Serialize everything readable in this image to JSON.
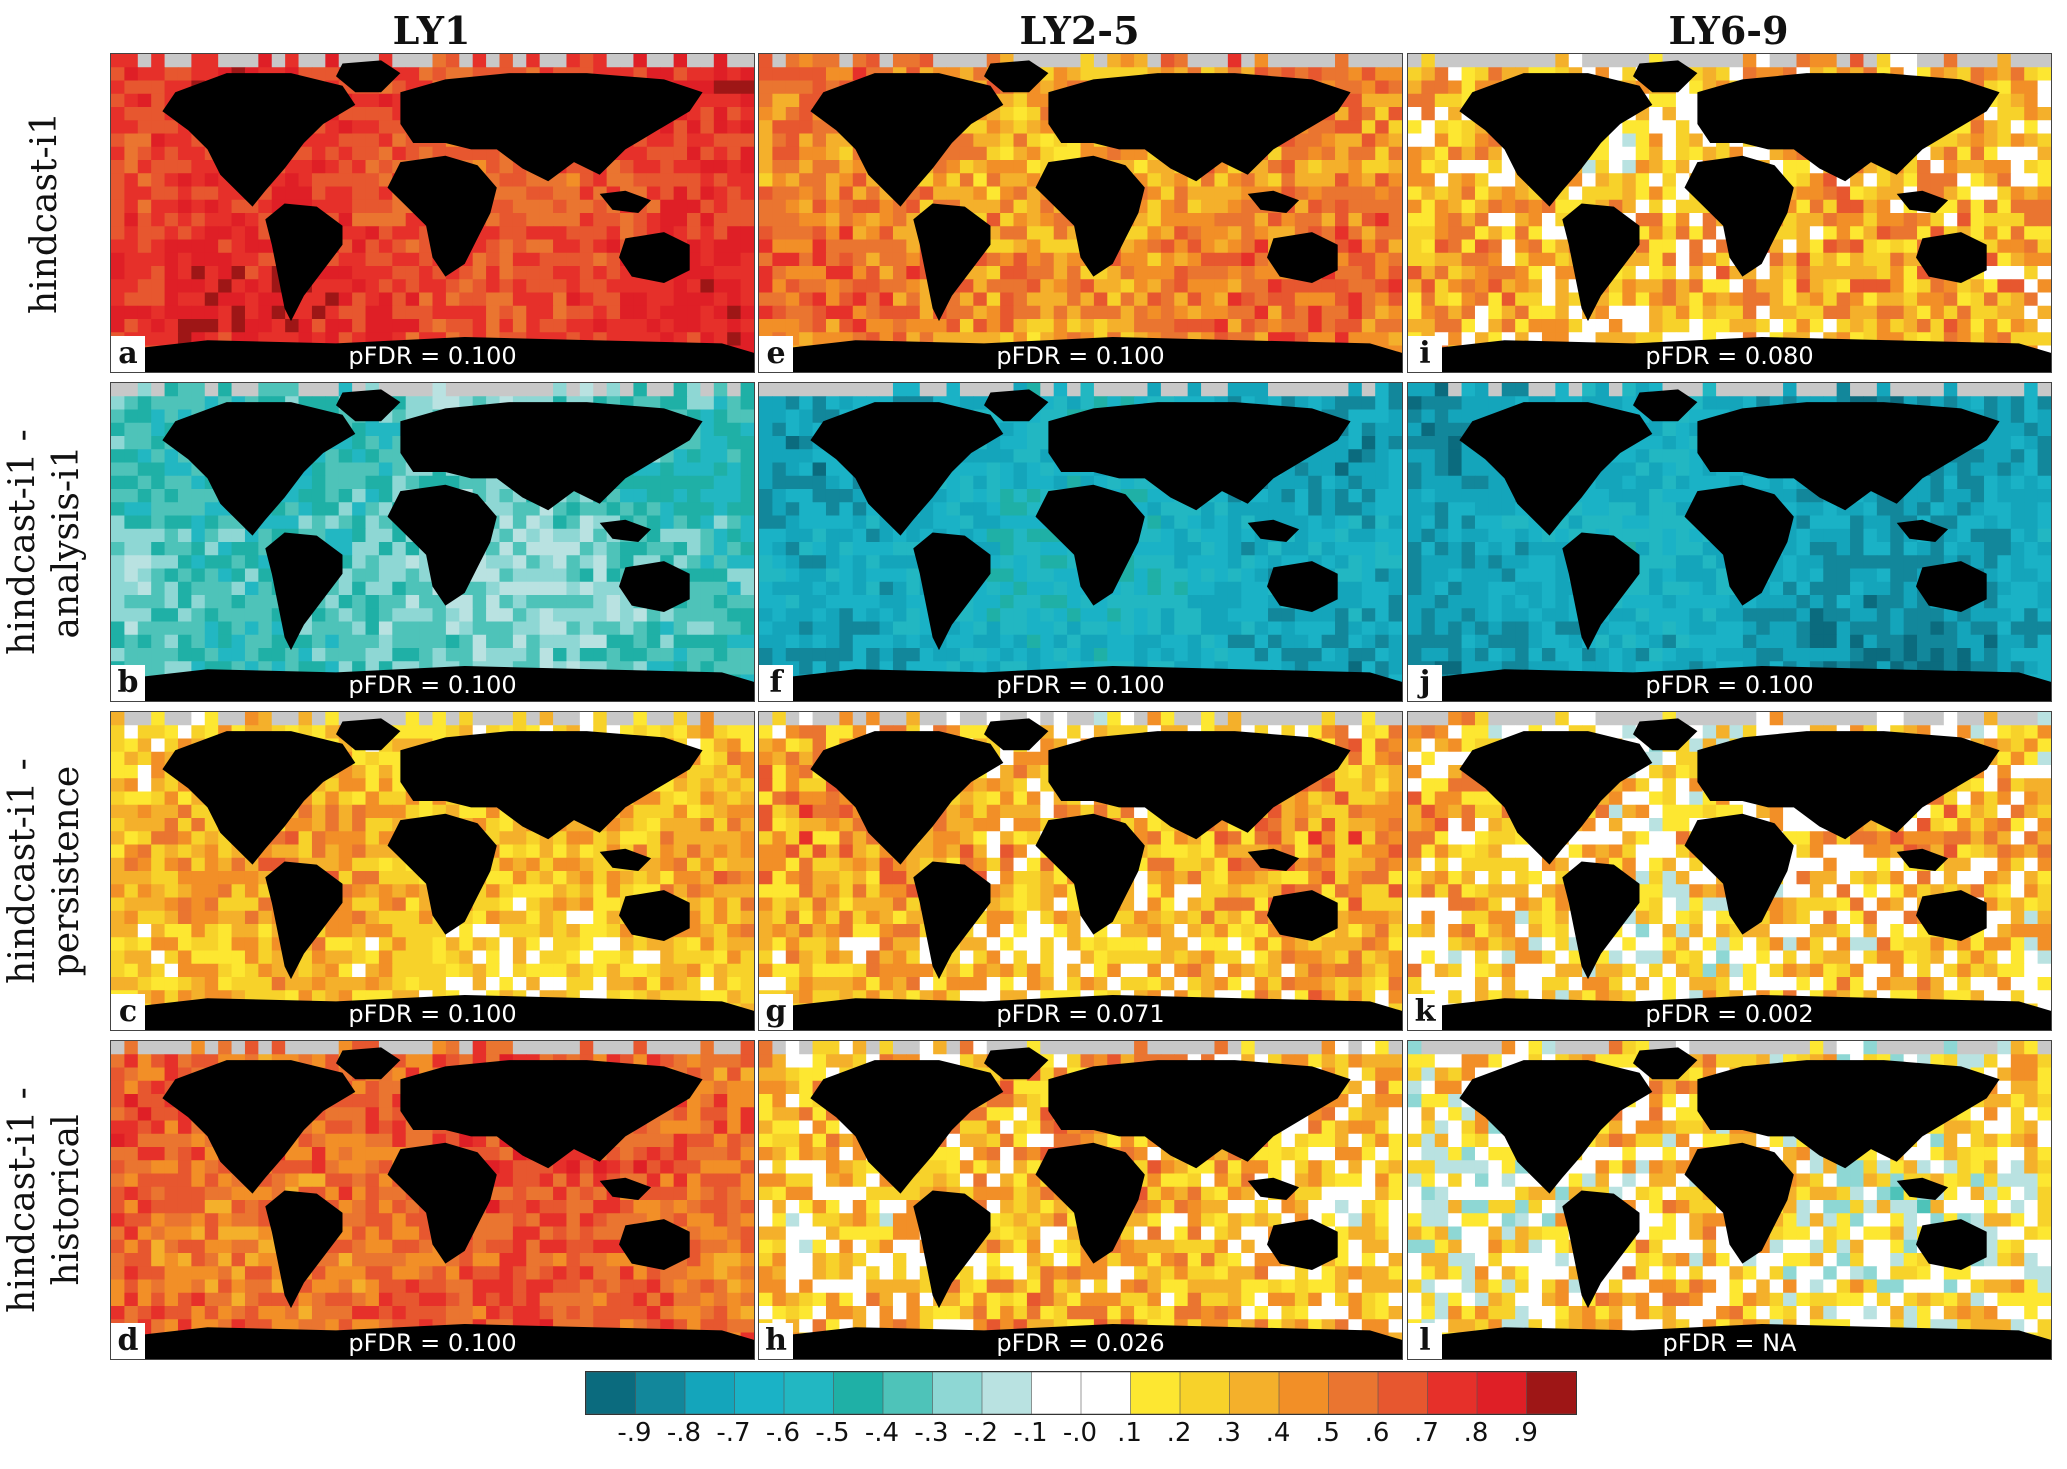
{
  "chart_data": {
    "type": "heatmap",
    "columns": [
      "LY1",
      "LY2-5",
      "LY6-9"
    ],
    "rows": [
      {
        "label_line1": "hindcast-i1",
        "label_line2": ""
      },
      {
        "label_line1": "hindcast-i1 -",
        "label_line2": "analysis-i1"
      },
      {
        "label_line1": "hindcast-i1 -",
        "label_line2": "persistence"
      },
      {
        "label_line1": "hindcast-i1 -",
        "label_line2": "historical"
      }
    ],
    "panels": [
      {
        "letter": "a",
        "row": 0,
        "col": 0,
        "pfdr": "pFDR = 0.100",
        "mean": 0.72,
        "spread": 0.12
      },
      {
        "letter": "e",
        "row": 0,
        "col": 1,
        "pfdr": "pFDR = 0.100",
        "mean": 0.48,
        "spread": 0.2
      },
      {
        "letter": "i",
        "row": 0,
        "col": 2,
        "pfdr": "pFDR = 0.080",
        "mean": 0.3,
        "spread": 0.3
      },
      {
        "letter": "b",
        "row": 1,
        "col": 0,
        "pfdr": "pFDR = 0.100",
        "mean": -0.38,
        "spread": 0.15
      },
      {
        "letter": "f",
        "row": 1,
        "col": 1,
        "pfdr": "pFDR = 0.100",
        "mean": -0.68,
        "spread": 0.14
      },
      {
        "letter": "j",
        "row": 1,
        "col": 2,
        "pfdr": "pFDR = 0.100",
        "mean": -0.75,
        "spread": 0.12
      },
      {
        "letter": "c",
        "row": 2,
        "col": 0,
        "pfdr": "pFDR = 0.100",
        "mean": 0.32,
        "spread": 0.2
      },
      {
        "letter": "g",
        "row": 2,
        "col": 1,
        "pfdr": "pFDR = 0.071",
        "mean": 0.33,
        "spread": 0.28
      },
      {
        "letter": "k",
        "row": 2,
        "col": 2,
        "pfdr": "pFDR = 0.002",
        "mean": 0.22,
        "spread": 0.33
      },
      {
        "letter": "d",
        "row": 3,
        "col": 0,
        "pfdr": "pFDR = 0.100",
        "mean": 0.62,
        "spread": 0.17
      },
      {
        "letter": "h",
        "row": 3,
        "col": 1,
        "pfdr": "pFDR = 0.026",
        "mean": 0.3,
        "spread": 0.3
      },
      {
        "letter": "l",
        "row": 3,
        "col": 2,
        "pfdr": "pFDR = NA",
        "mean": 0.15,
        "spread": 0.35
      }
    ],
    "colorbar": {
      "ticks": [
        "-.9",
        "-.8",
        "-.7",
        "-.6",
        "-.5",
        "-.4",
        "-.3",
        "-.2",
        "-.1",
        "-.0",
        ".1",
        ".2",
        ".3",
        ".4",
        ".5",
        ".6",
        ".7",
        ".8",
        ".9"
      ],
      "colors": [
        "#0b6b7e",
        "#12879b",
        "#14a5bb",
        "#1ab2c6",
        "#22b7c2",
        "#1fb0a6",
        "#4ec3b9",
        "#8ed7d4",
        "#b9e2e1",
        "#ffffff",
        "#ffffff",
        "#fde731",
        "#f7d22a",
        "#f4b02b",
        "#f28f27",
        "#ea7530",
        "#e7572f",
        "#e6302a",
        "#df1f26",
        "#9e1616"
      ]
    },
    "land_color": "#000000",
    "missing_color": "#c8c8c8"
  }
}
